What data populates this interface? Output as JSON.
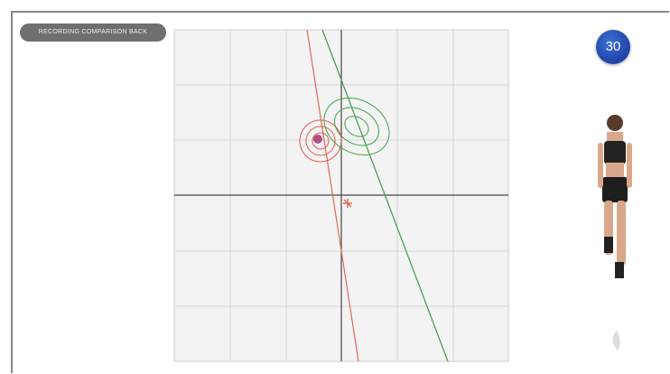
{
  "header": {
    "label": "RECORDING COMPARISON BACK"
  },
  "badge": {
    "value": 30
  }
}
